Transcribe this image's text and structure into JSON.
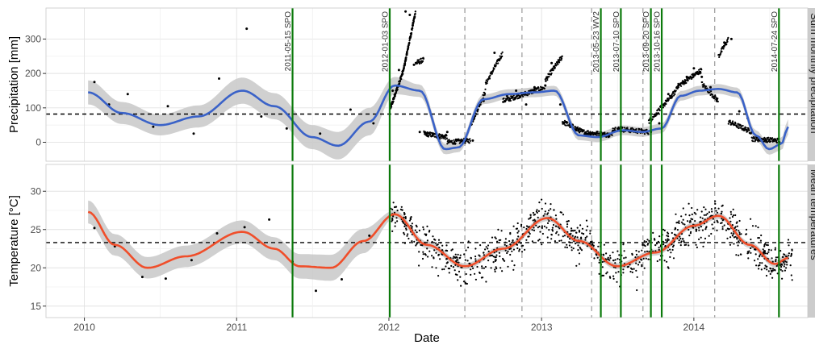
{
  "chart_data": {
    "type": "scatter",
    "xlabel": "Date",
    "xlim": [
      "2009-10-01",
      "2014-10-01"
    ],
    "x_ticks": [
      "2010-01-01",
      "2011-01-01",
      "2012-01-01",
      "2013-01-01",
      "2014-01-01"
    ],
    "x_tick_labels": [
      "2010",
      "2011",
      "2012",
      "2013",
      "2014"
    ],
    "events": [
      {
        "date": "2011-05-15",
        "label": "2011-05-15 SPO"
      },
      {
        "date": "2012-01-03",
        "label": "2012-01-03 SPO"
      },
      {
        "date": "2013-05-23",
        "label": "2013-05-23 WV2"
      },
      {
        "date": "2013-07-10",
        "label": "2013-07-10 SPO"
      },
      {
        "date": "2013-09-20",
        "label": "2013-09-20 SPO"
      },
      {
        "date": "2013-10-16",
        "label": "2013-10-16 SPO"
      },
      {
        "date": "2014-07-24",
        "label": "2014-07-24 SPO"
      }
    ],
    "dashed_dates": [
      "2012-07-01",
      "2012-11-15",
      "2013-05-01",
      "2013-09-01",
      "2014-02-20"
    ],
    "colors": {
      "precip_smooth": "#3a62c8",
      "temp_smooth": "#f04e2a",
      "events": "#0b7a0b",
      "ribbon": "#c8c8c8",
      "points": "#000000",
      "strip": "#cccccc"
    },
    "panels": [
      {
        "strip": "Sum monthly precipitation",
        "ylabel": "Precipitation [mm]",
        "ylim": [
          -55,
          390
        ],
        "y_ticks": [
          0,
          100,
          200,
          300
        ],
        "y_tick_labels": [
          "0",
          "100",
          "200",
          "300"
        ],
        "hline": 82,
        "smooth": {
          "x": [
            "2010-01-10",
            "2010-04-01",
            "2010-07-01",
            "2010-10-01",
            "2011-01-15",
            "2011-04-01",
            "2011-07-01",
            "2011-09-01",
            "2011-11-15",
            "2012-01-15",
            "2012-03-15",
            "2012-05-15",
            "2012-06-15",
            "2012-08-15",
            "2012-10-15",
            "2012-12-15",
            "2013-02-01",
            "2013-04-01",
            "2013-05-15",
            "2013-07-15",
            "2013-08-30",
            "2013-10-15",
            "2013-12-01",
            "2014-01-15",
            "2014-03-01",
            "2014-04-15",
            "2014-05-30",
            "2014-06-30",
            "2014-07-30",
            "2014-08-15"
          ],
          "y": [
            145,
            85,
            50,
            75,
            150,
            105,
            15,
            -10,
            60,
            165,
            150,
            -20,
            -15,
            125,
            140,
            145,
            150,
            20,
            15,
            35,
            30,
            40,
            135,
            150,
            155,
            145,
            20,
            -20,
            -5,
            45
          ],
          "se": [
            35,
            32,
            30,
            32,
            38,
            38,
            35,
            40,
            40,
            25,
            18,
            15,
            14,
            14,
            14,
            14,
            14,
            14,
            14,
            14,
            14,
            14,
            14,
            14,
            14,
            14,
            15,
            16,
            18,
            22
          ]
        },
        "points": {
          "x": [
            "2010-01-25",
            "2010-03-01",
            "2010-04-15",
            "2010-06-15",
            "2010-07-20",
            "2010-09-20",
            "2010-11-20",
            "2011-01-25",
            "2011-03-01",
            "2011-05-01",
            "2011-07-20",
            "2011-10-01",
            "2011-11-25",
            "2012-01-10",
            "2012-01-25",
            "2012-02-10",
            "2012-02-20",
            "2012-03-01",
            "2012-03-15",
            "2012-04-01",
            "2012-04-15",
            "2012-05-01",
            "2012-05-20",
            "2012-06-10",
            "2012-07-01",
            "2012-07-20",
            "2012-08-15",
            "2012-09-10",
            "2012-09-20",
            "2012-10-10",
            "2012-11-01",
            "2012-11-25",
            "2012-12-15",
            "2013-01-10",
            "2013-01-25",
            "2013-02-15",
            "2013-03-10",
            "2013-03-25",
            "2013-04-15",
            "2013-05-10",
            "2013-06-01",
            "2013-06-20",
            "2013-07-10",
            "2013-07-25",
            "2013-08-15",
            "2013-09-01",
            "2013-09-20",
            "2013-10-10",
            "2013-11-01",
            "2013-11-25",
            "2013-12-15",
            "2014-01-01",
            "2014-01-20",
            "2014-02-10",
            "2014-02-25",
            "2014-03-15",
            "2014-04-01",
            "2014-04-20",
            "2014-05-10",
            "2014-06-01",
            "2014-06-20",
            "2014-07-10",
            "2014-07-25"
          ],
          "y": [
            175,
            110,
            140,
            45,
            105,
            25,
            185,
            330,
            75,
            40,
            25,
            95,
            55,
            150,
            210,
            380,
            370,
            225,
            30,
            20,
            20,
            10,
            30,
            5,
            5,
            5,
            120,
            260,
            240,
            135,
            150,
            110,
            160,
            165,
            230,
            110,
            50,
            35,
            25,
            25,
            20,
            30,
            45,
            40,
            30,
            30,
            30,
            55,
            140,
            165,
            190,
            215,
            190,
            160,
            120,
            290,
            300,
            90,
            70,
            15,
            5,
            5,
            0
          ]
        }
      },
      {
        "strip": "Mean temperatures",
        "ylabel": "Temperature [°C]",
        "ylim": [
          13.5,
          33.5
        ],
        "y_ticks": [
          15,
          20,
          25,
          30
        ],
        "y_tick_labels": [
          "15",
          "20",
          "25",
          "30"
        ],
        "hline": 23.3,
        "smooth": {
          "x": [
            "2010-01-10",
            "2010-03-15",
            "2010-06-01",
            "2010-09-01",
            "2011-01-15",
            "2011-04-01",
            "2011-06-01",
            "2011-08-15",
            "2011-11-01",
            "2012-01-15",
            "2012-04-01",
            "2012-07-01",
            "2012-10-01",
            "2013-01-15",
            "2013-04-01",
            "2013-07-01",
            "2013-10-01",
            "2014-01-01",
            "2014-03-01",
            "2014-05-15",
            "2014-07-15",
            "2014-08-15"
          ],
          "y": [
            27.3,
            23.0,
            20.0,
            21.5,
            24.7,
            22.5,
            20.2,
            20.0,
            23.5,
            27.0,
            23.0,
            20.2,
            22.5,
            26.5,
            23.5,
            20.2,
            22.0,
            25.5,
            26.8,
            23.0,
            20.5,
            21.3
          ],
          "se": [
            1.5,
            1.4,
            1.4,
            1.4,
            1.5,
            1.5,
            1.6,
            1.7,
            1.6,
            0.5,
            0.45,
            0.4,
            0.4,
            0.4,
            0.4,
            0.4,
            0.4,
            0.4,
            0.4,
            0.4,
            0.45,
            0.6
          ]
        },
        "scatter_range": [
          "2012-01-05",
          "2014-08-25"
        ],
        "scatter_count": 1000,
        "scatter_sd": 1.8,
        "points": {
          "x": [
            "2010-01-25",
            "2010-03-15",
            "2010-05-20",
            "2010-07-15",
            "2010-09-15",
            "2010-11-15",
            "2011-01-20",
            "2011-03-20",
            "2011-05-15",
            "2011-07-10",
            "2011-09-10",
            "2011-11-15"
          ],
          "y": [
            25.2,
            22.8,
            18.8,
            18.6,
            21.0,
            24.5,
            25.3,
            26.3,
            20.8,
            17.0,
            18.5,
            24.2
          ]
        }
      }
    ]
  }
}
